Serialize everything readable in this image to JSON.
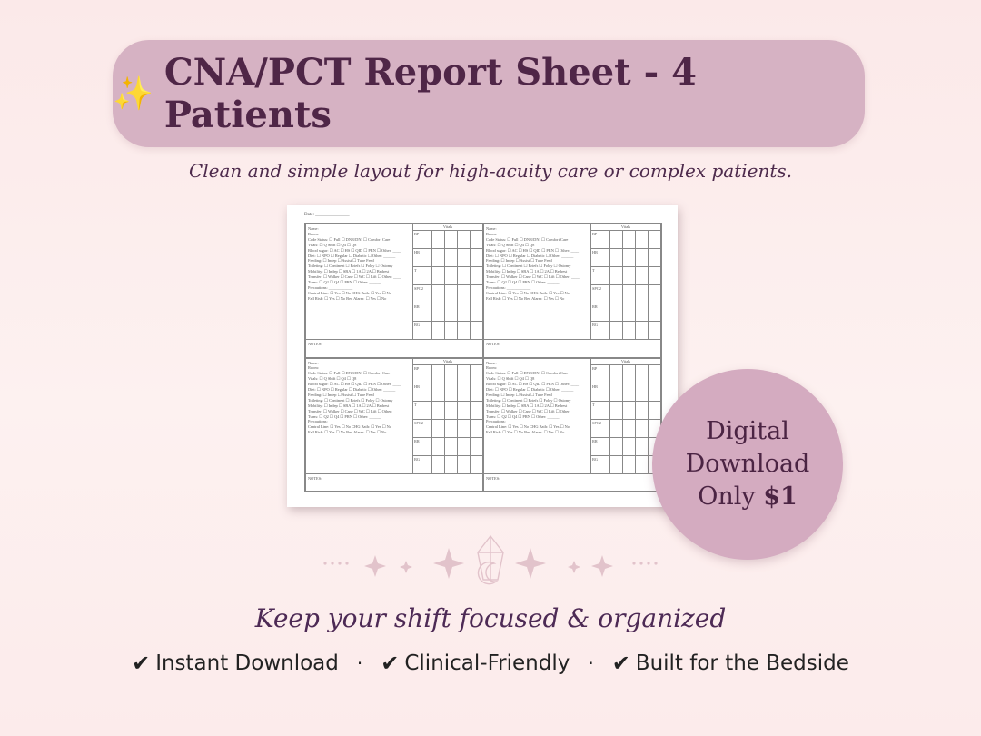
{
  "header": {
    "sparkle_icon": "✨",
    "title": "CNA/PCT Report Sheet - 4 Patients",
    "subtitle": "Clean and simple layout for high-acuity care or complex patients."
  },
  "sheet": {
    "date_label": "Date: _______________",
    "info_lines": [
      "Name:",
      "Room:",
      "Code Status: ☐ Full ☐ DNR/DNI ☐ Comfort Care",
      "Vitals: ☐ Q Shift ☐ Q4 ☐ Q8",
      "Blood sugar: ☐ AC ☐ HS ☐ QID ☐ PRN ☐ Other: ____",
      "Diet: ☐ NPO ☐ Regular ☐ Diabetic ☐ Other: ______",
      "Feeding: ☐ Indep ☐ Assist ☐ Tube Feed",
      "Toileting: ☐ Continent ☐ Briefs ☐ Foley ☐ Ostomy",
      "Mobility: ☐ Indep ☐ SBA ☐ 1A ☐ 2A ☐ Bedrest",
      "Transfer: ☐ Walker ☐ Cane ☐ WC ☐ Lift ☐ Other: ____",
      "Turns: ☐ Q2 ☐ Q4 ☐ PRN ☐ Other: ______",
      "Precautions: ____________",
      "Central Line: ☐ Yes ☐ No      CHG Bath: ☐ Yes ☐ No",
      "Fall Risk:      ☐ Yes ☐ No      Bed Alarm: ☐ Yes ☐ No"
    ],
    "vitals_header": "Vitals",
    "vitals_labels": [
      "BP",
      "HR",
      "T",
      "SPO2",
      "RR",
      "BG"
    ],
    "notes_label": "NOTES:"
  },
  "badge": {
    "line1": "Digital",
    "line2": "Download",
    "line3": "Only",
    "price": "$1"
  },
  "tagline": "Keep your shift focused & organized",
  "features": [
    {
      "check": "✔",
      "label": "Instant Download"
    },
    {
      "check": "✔",
      "label": "Clinical-Friendly"
    },
    {
      "check": "✔",
      "label": "Built for the Bedside"
    }
  ],
  "separator": "·",
  "colors": {
    "title_pill": "#d6b2c3",
    "title_text": "#4f2647",
    "badge": "#d4abc0",
    "background": "#fbe9e9"
  }
}
